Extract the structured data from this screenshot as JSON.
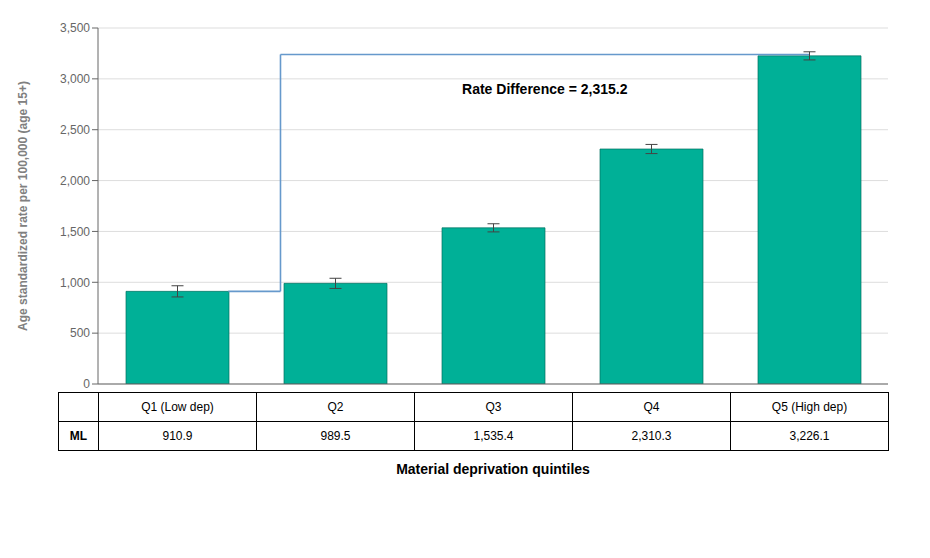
{
  "chart_data": {
    "type": "bar",
    "categories": [
      "Q1 (Low dep)",
      "Q2",
      "Q3",
      "Q4",
      "Q5 (High dep)"
    ],
    "values": [
      910.9,
      989.5,
      1535.4,
      2310.3,
      3226.1
    ],
    "errors": [
      55,
      50,
      40,
      45,
      40
    ],
    "color": "#00B097",
    "edge_color": "#007060",
    "error_color": "#444444",
    "ylabel": "Age standardized rate per 100,000 (age 15+)",
    "xlabel": "Material deprivation quintiles",
    "ylim": [
      0,
      3500
    ],
    "yticks": [
      0,
      500,
      {
        "value": 1000,
        "label": "1,000"
      },
      {
        "value": 1500,
        "label": "1,500"
      },
      {
        "value": 2000,
        "label": "2,000"
      },
      {
        "value": 2500,
        "label": "2,500"
      },
      {
        "value": 3000,
        "label": "3,000"
      },
      {
        "value": 3500,
        "label": "3,500"
      }
    ],
    "grid": true,
    "bracket": {
      "y": 3240,
      "color": "#6699CC",
      "text": "Rate Difference = 2,315.2"
    },
    "table": {
      "row_label": "ML",
      "value_labels": [
        "910.9",
        "989.5",
        "1,535.4",
        "2,310.3",
        "3,226.1"
      ]
    }
  }
}
